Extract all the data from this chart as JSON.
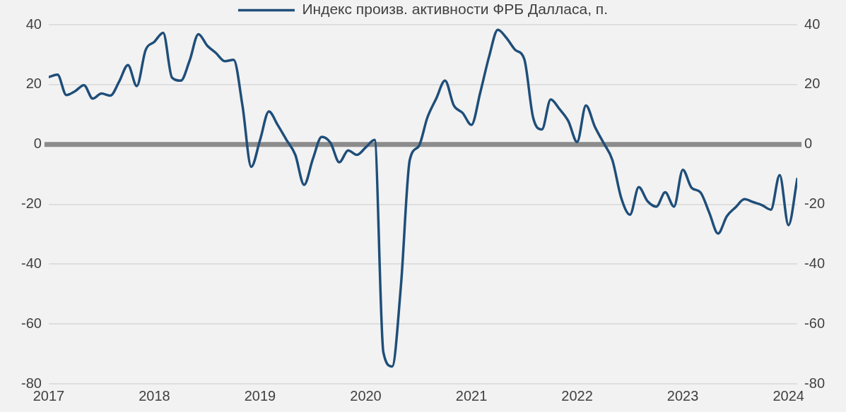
{
  "chart_data": {
    "type": "line",
    "x": [
      "2017-01",
      "2017-02",
      "2017-03",
      "2017-04",
      "2017-05",
      "2017-06",
      "2017-07",
      "2017-08",
      "2017-09",
      "2017-10",
      "2017-11",
      "2017-12",
      "2018-01",
      "2018-02",
      "2018-03",
      "2018-04",
      "2018-05",
      "2018-06",
      "2018-07",
      "2018-08",
      "2018-09",
      "2018-10",
      "2018-11",
      "2018-12",
      "2019-01",
      "2019-02",
      "2019-03",
      "2019-04",
      "2019-05",
      "2019-06",
      "2019-07",
      "2019-08",
      "2019-09",
      "2019-10",
      "2019-11",
      "2019-12",
      "2020-01",
      "2020-02",
      "2020-03",
      "2020-04",
      "2020-05",
      "2020-06",
      "2020-07",
      "2020-08",
      "2020-09",
      "2020-10",
      "2020-11",
      "2020-12",
      "2021-01",
      "2021-02",
      "2021-03",
      "2021-04",
      "2021-05",
      "2021-06",
      "2021-07",
      "2021-08",
      "2021-09",
      "2021-10",
      "2021-11",
      "2021-12",
      "2022-01",
      "2022-02",
      "2022-03",
      "2022-04",
      "2022-05",
      "2022-06",
      "2022-07",
      "2022-08",
      "2022-09",
      "2022-10",
      "2022-11",
      "2022-12",
      "2023-01",
      "2023-02",
      "2023-03",
      "2023-04",
      "2023-05",
      "2023-06",
      "2023-07",
      "2023-08",
      "2023-09",
      "2023-10",
      "2023-11",
      "2023-12",
      "2024-01",
      "2024-02"
    ],
    "series": [
      {
        "name": "Индекс произв. активности ФРБ Далласа, п.",
        "color": "#1f4e79",
        "values": [
          22.5,
          23.3,
          16.5,
          17.8,
          19.8,
          15.3,
          17,
          16.3,
          21,
          26.5,
          19.5,
          31.5,
          34.3,
          37.3,
          22.3,
          21.3,
          28,
          36.8,
          33,
          30.5,
          27.8,
          28.3,
          13,
          -7.5,
          1.5,
          11,
          6.5,
          1.5,
          -3.5,
          -13.5,
          -4.8,
          2.5,
          0.5,
          -6,
          -2,
          -3.5,
          -1,
          1.5,
          -69.5,
          -74.2,
          -47,
          -5.2,
          -0.7,
          9,
          15.3,
          21.3,
          13,
          10.5,
          6.5,
          17.3,
          29.3,
          38.3,
          35.5,
          31.5,
          28.5,
          9,
          5,
          15,
          11.8,
          7.8,
          0.8,
          13,
          6,
          0.5,
          -5.2,
          -17.8,
          -23.5,
          -14.3,
          -19,
          -20.8,
          -16,
          -20.8,
          -8.5,
          -14.5,
          -16,
          -22.8,
          -29.8,
          -24,
          -21,
          -18.3,
          -19.3,
          -20.3,
          -21.8,
          -10.3,
          -27,
          -11.5
        ]
      }
    ],
    "xlim": [
      "2017-01",
      "2024-02"
    ],
    "xticks": [
      "2017",
      "2018",
      "2019",
      "2020",
      "2021",
      "2022",
      "2023",
      "2024"
    ],
    "ylim": [
      -80,
      40
    ],
    "yticks": [
      -80,
      -60,
      -40,
      -20,
      0,
      20,
      40
    ],
    "y2lim": [
      -80,
      40
    ],
    "y2ticks": [
      -80,
      -60,
      -40,
      -20,
      0,
      20,
      40
    ],
    "ref_lines": [
      {
        "axis": "y",
        "value": 0,
        "color": "#8c8c8c"
      }
    ],
    "grid": "y",
    "legend": "top",
    "marker": "none",
    "line_style": "solid"
  }
}
